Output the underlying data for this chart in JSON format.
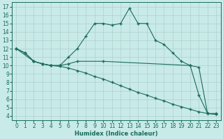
{
  "xlabel": "Humidex (Indice chaleur)",
  "bg_color": "#c8eae8",
  "grid_color": "#b0d0cc",
  "line_color": "#1a6b5a",
  "line1_x": [
    0,
    1,
    2,
    3,
    4,
    5,
    6,
    7,
    8,
    9,
    10,
    11,
    12,
    13,
    14,
    15,
    16,
    17,
    18,
    19,
    20,
    21,
    22,
    23
  ],
  "line1_y": [
    12,
    11.5,
    10.5,
    10.2,
    10,
    10,
    11,
    12,
    13.5,
    15,
    15,
    14.8,
    15,
    16.8,
    15,
    15,
    13,
    12.5,
    11.5,
    10.5,
    10,
    6.5,
    4.3,
    4.3
  ],
  "line2_x": [
    0,
    1,
    2,
    3,
    4,
    5,
    6,
    7,
    8,
    9,
    10,
    11,
    12,
    13,
    14,
    15,
    16,
    17,
    18,
    19,
    20,
    21,
    22,
    23
  ],
  "line2_y": [
    12,
    11.5,
    10.5,
    10.2,
    10,
    9.9,
    9.7,
    9.4,
    9.1,
    8.7,
    8.4,
    8.0,
    7.6,
    7.2,
    6.8,
    6.5,
    6.1,
    5.8,
    5.4,
    5.1,
    4.8,
    4.5,
    4.3,
    4.2
  ],
  "line3_x": [
    0,
    2,
    3,
    4,
    5,
    6,
    7,
    10,
    20,
    21,
    22,
    23
  ],
  "line3_y": [
    12,
    10.5,
    10.2,
    10,
    10,
    10.2,
    10.5,
    10.5,
    10,
    9.8,
    4.3,
    4.2
  ],
  "xlim": [
    -0.5,
    23.5
  ],
  "ylim": [
    3.5,
    17.5
  ],
  "xticks": [
    0,
    1,
    2,
    3,
    4,
    5,
    6,
    7,
    8,
    9,
    10,
    11,
    12,
    13,
    14,
    15,
    16,
    17,
    18,
    19,
    20,
    21,
    22,
    23
  ],
  "yticks": [
    4,
    5,
    6,
    7,
    8,
    9,
    10,
    11,
    12,
    13,
    14,
    15,
    16,
    17
  ],
  "tick_fontsize": 5.5,
  "xlabel_fontsize": 6
}
